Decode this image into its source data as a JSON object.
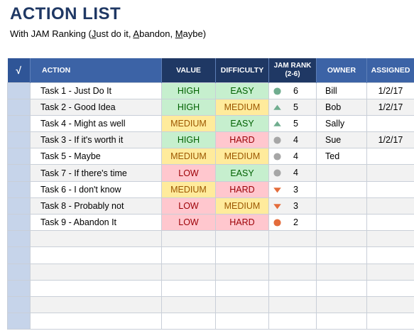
{
  "title": "ACTION LIST",
  "subtitle": {
    "prefix": "With JAM Ranking (",
    "j": "J",
    "just": "ust do it, ",
    "a": "A",
    "abandon": "bandon, ",
    "m": "M",
    "maybe": "aybe)"
  },
  "headers": {
    "check": "√",
    "action": "ACTION",
    "value": "VALUE",
    "difficulty": "DIFFICULTY",
    "jam_rank_1": "JAM RANK",
    "jam_rank_2": "(2-6)",
    "owner": "OWNER",
    "assigned": "ASSIGNED"
  },
  "colors": {
    "indicator_green": "#70ad8f",
    "indicator_gray": "#a6a6a6",
    "indicator_orange": "#e46c3b"
  },
  "rows": [
    {
      "action": "Task 1 - Just Do It",
      "value": "HIGH",
      "value_level": "high",
      "difficulty": "EASY",
      "difficulty_level": "easy",
      "rank": "6",
      "indicator": "circle-green",
      "owner": "Bill",
      "assigned": "1/2/17"
    },
    {
      "action": "Task 2 - Good Idea",
      "value": "HIGH",
      "value_level": "high",
      "difficulty": "MEDIUM",
      "difficulty_level": "medium",
      "rank": "5",
      "indicator": "triangle-up-green",
      "owner": "Bob",
      "assigned": "1/2/17"
    },
    {
      "action": "Task 4 - Might as well",
      "value": "MEDIUM",
      "value_level": "medium",
      "difficulty": "EASY",
      "difficulty_level": "easy",
      "rank": "5",
      "indicator": "triangle-up-green",
      "owner": "Sally",
      "assigned": ""
    },
    {
      "action": "Task 3 - If it's worth it",
      "value": "HIGH",
      "value_level": "high",
      "difficulty": "HARD",
      "difficulty_level": "hard",
      "rank": "4",
      "indicator": "circle-gray",
      "owner": "Sue",
      "assigned": "1/2/17"
    },
    {
      "action": "Task 5 - Maybe",
      "value": "MEDIUM",
      "value_level": "medium",
      "difficulty": "MEDIUM",
      "difficulty_level": "medium",
      "rank": "4",
      "indicator": "circle-gray",
      "owner": "Ted",
      "assigned": ""
    },
    {
      "action": "Task 7 - If there's time",
      "value": "LOW",
      "value_level": "low",
      "difficulty": "EASY",
      "difficulty_level": "easy",
      "rank": "4",
      "indicator": "circle-gray",
      "owner": "",
      "assigned": ""
    },
    {
      "action": "Task 6 - I don't know",
      "value": "MEDIUM",
      "value_level": "medium",
      "difficulty": "HARD",
      "difficulty_level": "hard",
      "rank": "3",
      "indicator": "triangle-down-orange",
      "owner": "",
      "assigned": ""
    },
    {
      "action": "Task 8 - Probably not",
      "value": "LOW",
      "value_level": "low",
      "difficulty": "MEDIUM",
      "difficulty_level": "medium",
      "rank": "3",
      "indicator": "triangle-down-orange",
      "owner": "",
      "assigned": ""
    },
    {
      "action": "Task 9 - Abandon It",
      "value": "LOW",
      "value_level": "low",
      "difficulty": "HARD",
      "difficulty_level": "hard",
      "rank": "2",
      "indicator": "circle-orange",
      "owner": "",
      "assigned": ""
    },
    {
      "action": "",
      "value": "",
      "value_level": "",
      "difficulty": "",
      "difficulty_level": "",
      "rank": "",
      "indicator": "",
      "owner": "",
      "assigned": ""
    },
    {
      "action": "",
      "value": "",
      "value_level": "",
      "difficulty": "",
      "difficulty_level": "",
      "rank": "",
      "indicator": "",
      "owner": "",
      "assigned": ""
    },
    {
      "action": "",
      "value": "",
      "value_level": "",
      "difficulty": "",
      "difficulty_level": "",
      "rank": "",
      "indicator": "",
      "owner": "",
      "assigned": ""
    },
    {
      "action": "",
      "value": "",
      "value_level": "",
      "difficulty": "",
      "difficulty_level": "",
      "rank": "",
      "indicator": "",
      "owner": "",
      "assigned": ""
    },
    {
      "action": "",
      "value": "",
      "value_level": "",
      "difficulty": "",
      "difficulty_level": "",
      "rank": "",
      "indicator": "",
      "owner": "",
      "assigned": ""
    },
    {
      "action": "",
      "value": "",
      "value_level": "",
      "difficulty": "",
      "difficulty_level": "",
      "rank": "",
      "indicator": "",
      "owner": "",
      "assigned": ""
    }
  ]
}
